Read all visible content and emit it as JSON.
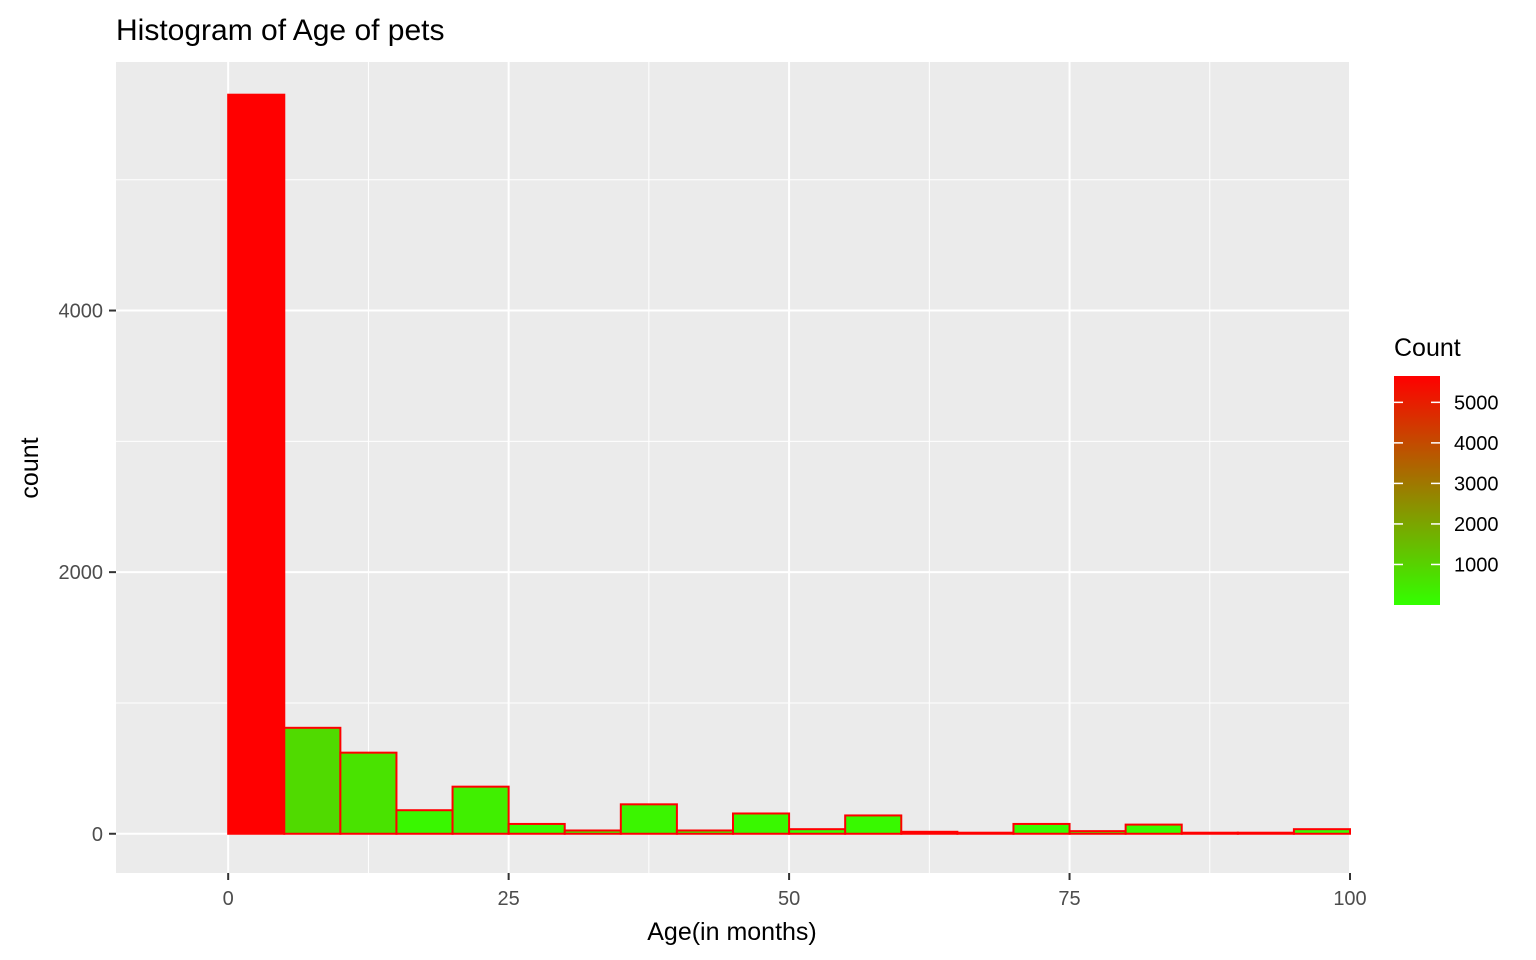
{
  "chart_data": {
    "type": "histogram",
    "title": "Histogram of Age of pets",
    "xlabel": "Age(in months)",
    "ylabel": "count",
    "xlim": [
      -10,
      100
    ],
    "ylim": [
      -300,
      5900
    ],
    "x_ticks": [
      0,
      25,
      50,
      75,
      100
    ],
    "y_ticks": [
      0,
      2000,
      4000
    ],
    "bin_width": 5,
    "bins": [
      {
        "x0": 0,
        "x1": 5,
        "count": 5650
      },
      {
        "x0": 5,
        "x1": 10,
        "count": 810
      },
      {
        "x0": 10,
        "x1": 15,
        "count": 620
      },
      {
        "x0": 15,
        "x1": 20,
        "count": 180
      },
      {
        "x0": 20,
        "x1": 25,
        "count": 360
      },
      {
        "x0": 25,
        "x1": 30,
        "count": 75
      },
      {
        "x0": 30,
        "x1": 35,
        "count": 25
      },
      {
        "x0": 35,
        "x1": 40,
        "count": 225
      },
      {
        "x0": 40,
        "x1": 45,
        "count": 25
      },
      {
        "x0": 45,
        "x1": 50,
        "count": 155
      },
      {
        "x0": 50,
        "x1": 55,
        "count": 35
      },
      {
        "x0": 55,
        "x1": 60,
        "count": 140
      },
      {
        "x0": 60,
        "x1": 65,
        "count": 15
      },
      {
        "x0": 65,
        "x1": 70,
        "count": 8
      },
      {
        "x0": 70,
        "x1": 75,
        "count": 75
      },
      {
        "x0": 75,
        "x1": 80,
        "count": 20
      },
      {
        "x0": 80,
        "x1": 85,
        "count": 70
      },
      {
        "x0": 85,
        "x1": 90,
        "count": 8
      },
      {
        "x0": 90,
        "x1": 95,
        "count": 8
      },
      {
        "x0": 95,
        "x1": 100,
        "count": 35
      }
    ],
    "bar_outline_color": "#ff0000",
    "grid": true,
    "panel_background": "#ebebeb",
    "legend": {
      "title": "Count",
      "position": "right",
      "gradient": {
        "low": "#33ff00",
        "high": "#ff0000",
        "min": 0,
        "max": 5650
      },
      "ticks": [
        1000,
        2000,
        3000,
        4000,
        5000
      ]
    }
  }
}
